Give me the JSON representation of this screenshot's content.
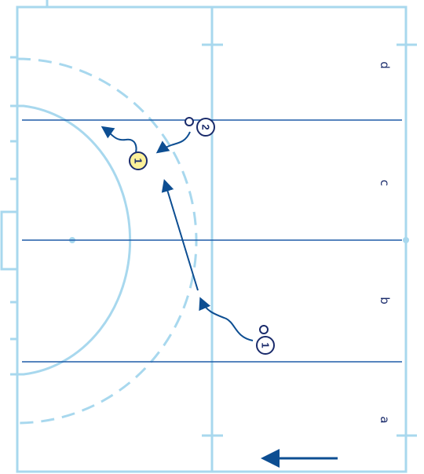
{
  "colors": {
    "pitch_line": "#a8d8ee",
    "lane_line": "#1e5ca8",
    "movement": "#0d4e92",
    "player_highlight": "#fdf19a",
    "player_outline": "#1a2b6b"
  },
  "lanes": {
    "a": "a",
    "b": "b",
    "c": "c",
    "d": "d"
  },
  "players": {
    "p1_circle": "1",
    "p2_circle": "2",
    "p1_highlight": "1"
  },
  "icons": {
    "direction": "arrow-left-icon",
    "marker": "player-marker-icon"
  }
}
